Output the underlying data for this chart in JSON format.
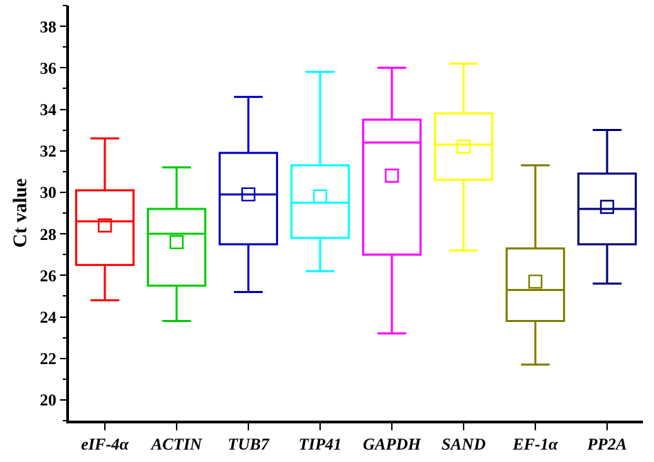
{
  "chart_data": {
    "type": "box",
    "ylabel": "Ct value",
    "categories": [
      "eIF-4α",
      "ACTIN",
      "TUB7",
      "TIP41",
      "GAPDH",
      "SAND",
      "EF-1α",
      "PP2A"
    ],
    "colors": [
      "#ff0000",
      "#00cc00",
      "#0000cc",
      "#00ffff",
      "#ff00ff",
      "#ffff00",
      "#808000",
      "#000080"
    ],
    "boxes": [
      {
        "low": 24.8,
        "q1": 26.5,
        "median": 28.6,
        "q3": 30.1,
        "high": 32.6,
        "mean": 28.4
      },
      {
        "low": 23.8,
        "q1": 25.5,
        "median": 28.0,
        "q3": 29.2,
        "high": 31.2,
        "mean": 27.6
      },
      {
        "low": 25.2,
        "q1": 27.5,
        "median": 29.9,
        "q3": 31.9,
        "high": 34.6,
        "mean": 29.9
      },
      {
        "low": 26.2,
        "q1": 27.8,
        "median": 29.5,
        "q3": 31.3,
        "high": 35.8,
        "mean": 29.8
      },
      {
        "low": 23.2,
        "q1": 27.0,
        "median": 32.4,
        "q3": 33.5,
        "high": 36.0,
        "mean": 30.8
      },
      {
        "low": 27.2,
        "q1": 30.6,
        "median": 32.3,
        "q3": 33.8,
        "high": 36.2,
        "mean": 32.2
      },
      {
        "low": 21.7,
        "q1": 23.8,
        "median": 25.3,
        "q3": 27.3,
        "high": 31.3,
        "mean": 25.7
      },
      {
        "low": 25.6,
        "q1": 27.5,
        "median": 29.2,
        "q3": 30.9,
        "high": 33.0,
        "mean": 29.3
      }
    ],
    "ylim": [
      19,
      39
    ],
    "yticks": [
      20,
      22,
      24,
      26,
      28,
      30,
      32,
      34,
      36,
      38
    ],
    "marker": "square",
    "grid": false
  }
}
